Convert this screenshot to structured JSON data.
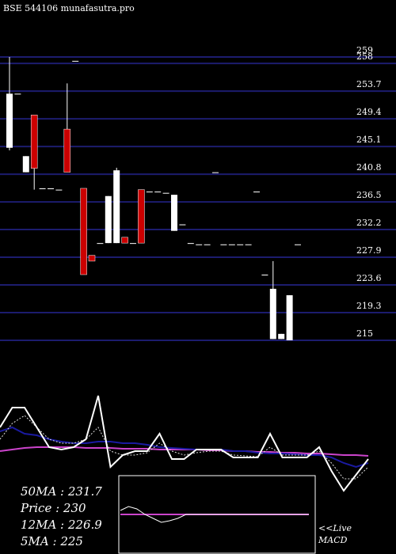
{
  "chart_data": [
    {
      "type": "candlestick",
      "title": "BSE 544106 munafasutra.pro",
      "ylim": [
        215,
        259
      ],
      "yticks": [
        259,
        258,
        253.7,
        249.4,
        245.1,
        240.8,
        236.5,
        232.2,
        227.9,
        223.6,
        219.3,
        215
      ],
      "grid": true,
      "grid_color": "#1c1c6e",
      "up_color": "#ffffff",
      "down_color": "#cc0000",
      "open": [
        244.9,
        253.3,
        241.1,
        250,
        238.6,
        238.6,
        238.4,
        247.8,
        258.4,
        238.6,
        228.2,
        230.1,
        230.1,
        230.1,
        231,
        230.1,
        238.4,
        238.1,
        238.1,
        237.9,
        232,
        233,
        230.1,
        229.9,
        229.9,
        241.1,
        229.9,
        229.9,
        229.9,
        229.9,
        238.1,
        225.2,
        215.2,
        215.2,
        215,
        229.9
      ],
      "high": [
        259,
        253.3,
        243.6,
        250,
        238.6,
        238.6,
        238.4,
        254.9,
        258.4,
        238.6,
        228.2,
        230.1,
        237.4,
        241.8,
        231,
        230.1,
        238.4,
        238.1,
        238.1,
        237.9,
        237.6,
        233,
        230.1,
        229.9,
        229.9,
        241.1,
        229.9,
        229.9,
        229.9,
        229.9,
        238.1,
        225.2,
        227.3,
        216,
        222,
        229.9
      ],
      "low": [
        244.5,
        253.3,
        241.1,
        238.4,
        238.6,
        238.6,
        238.4,
        241.1,
        258.4,
        225.2,
        227.3,
        230.1,
        230.1,
        230.1,
        230.1,
        230.1,
        230.1,
        238.1,
        238.1,
        237.9,
        232,
        233,
        230.1,
        229.9,
        229.9,
        241.1,
        229.9,
        229.9,
        229.9,
        229.9,
        238.1,
        225.2,
        215.2,
        215.2,
        215,
        229.9
      ],
      "close": [
        253.3,
        253.3,
        243.6,
        241.7,
        238.6,
        238.6,
        238.4,
        241.1,
        258.4,
        225.2,
        227.3,
        230.1,
        237.4,
        241.4,
        230.1,
        230.1,
        230.1,
        238.1,
        238.1,
        237.9,
        237.6,
        233,
        230.1,
        229.9,
        229.9,
        241.1,
        229.9,
        229.9,
        229.9,
        229.9,
        238.1,
        225.2,
        223,
        216,
        222,
        229.9
      ]
    },
    {
      "type": "line",
      "ylim": [
        -30,
        110
      ],
      "annotations": [
        "50MA : 231.7",
        "Price : 230",
        "12MA : 226.9",
        "5MA : 225"
      ],
      "series": [
        {
          "name": null,
          "color": "#cc44cc",
          "values": [
            30,
            32,
            34,
            35,
            35,
            35,
            35,
            34,
            34,
            34,
            33,
            33,
            33,
            32,
            32,
            32,
            32,
            31,
            31,
            30,
            30,
            29,
            29,
            28,
            28,
            27,
            27,
            26,
            25,
            25,
            24
          ]
        },
        {
          "name": null,
          "color": "#1a1aa0",
          "values": [
            55,
            60,
            52,
            50,
            45,
            42,
            40,
            40,
            42,
            42,
            40,
            40,
            38,
            35,
            34,
            33,
            32,
            32,
            32,
            30,
            30,
            28,
            27,
            27,
            26,
            25,
            25,
            22,
            15,
            10,
            15
          ]
        },
        {
          "name": null,
          "color": "#dddddd",
          "dashed": true,
          "values": [
            45,
            65,
            75,
            60,
            45,
            40,
            40,
            45,
            60,
            30,
            25,
            25,
            28,
            40,
            30,
            25,
            28,
            30,
            30,
            25,
            24,
            23,
            35,
            25,
            25,
            25,
            30,
            15,
            -5,
            -5,
            10
          ]
        },
        {
          "name": null,
          "color": "#ffffff",
          "values": [
            60,
            85,
            85,
            60,
            35,
            32,
            35,
            45,
            100,
            10,
            25,
            30,
            30,
            52,
            20,
            20,
            32,
            32,
            32,
            22,
            22,
            22,
            52,
            22,
            22,
            22,
            35,
            5,
            -20,
            0,
            20
          ]
        }
      ]
    },
    {
      "type": "macd",
      "ylim": [
        -50,
        50
      ],
      "label_lines": [
        "<<Live",
        "MACD"
      ],
      "series": [
        {
          "name": null,
          "color": "#cc44cc",
          "values": [
            0,
            0,
            0,
            0,
            0,
            0,
            0,
            0,
            0,
            0,
            0,
            0,
            0,
            0,
            0,
            0,
            0,
            0,
            0,
            0,
            0,
            0,
            0,
            0
          ]
        },
        {
          "name": null,
          "color": "#ffffff",
          "values": [
            5,
            10,
            7,
            0,
            -5,
            -10,
            -8,
            -5,
            0,
            0,
            0,
            0,
            0,
            0,
            0,
            0,
            0,
            0,
            0,
            0,
            0,
            0,
            0,
            0
          ]
        }
      ]
    }
  ]
}
